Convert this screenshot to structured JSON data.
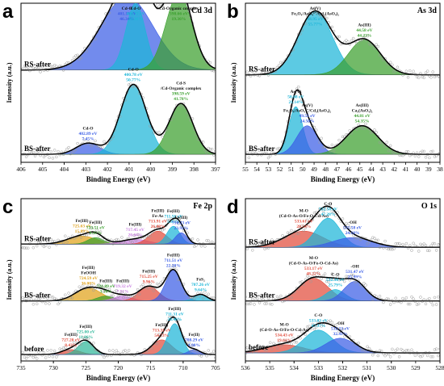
{
  "chart_data": [
    {
      "panel": "a",
      "title": "Cd 3d",
      "type": "line",
      "x_range": [
        406,
        397
      ],
      "x_ticks": [
        406,
        405,
        404,
        403,
        402,
        401,
        400,
        399,
        398,
        397
      ],
      "xlabel": "Binding Energy (eV)",
      "ylabel": "Intensity (a.u.)",
      "stacks": [
        {
          "name": "RS-after",
          "baseline_frac": 0.58,
          "peaks": [
            {
              "center": 401.1,
              "height": 0.46,
              "width": 1.2,
              "color": "#3b5ee6",
              "labels": [
                "Cd-O",
                "401.19 eV",
                "46.34%"
              ]
            },
            {
              "center": 400.7,
              "height": 0.42,
              "width": 0.45,
              "color": "#1db6d8",
              "labels": [
                "Cd-O",
                "400.72 eV",
                "34.26%"
              ]
            },
            {
              "center": 398.7,
              "height": 0.48,
              "width": 0.6,
              "color": "#3ba02e",
              "labels": [
                "Cd-Organic complex",
                "398.66 eV",
                "19.36%"
              ]
            }
          ]
        },
        {
          "name": "BS-after",
          "baseline_frac": 0.05,
          "peaks": [
            {
              "center": 402.9,
              "height": 0.07,
              "width": 0.55,
              "color": "#3b5ee6",
              "labels": [
                "Cd-O",
                "402.89 eV",
                "7.45%"
              ]
            },
            {
              "center": 400.8,
              "height": 0.44,
              "width": 0.6,
              "color": "#1db6d8",
              "labels": [
                "Cd-O",
                "400.78 eV",
                "50.77%"
              ]
            },
            {
              "center": 398.6,
              "height": 0.32,
              "width": 0.55,
              "color": "#3ba02e",
              "labels": [
                "Cd-S",
                "/Cd-Organic complex",
                "398.59 eV",
                "41.78%"
              ]
            }
          ]
        }
      ]
    },
    {
      "panel": "b",
      "title": "As 3d",
      "type": "line",
      "x_range": [
        55,
        38
      ],
      "x_ticks": [
        55,
        54,
        53,
        52,
        51,
        50,
        49,
        48,
        47,
        46,
        45,
        44,
        43,
        42,
        41,
        40,
        39,
        38
      ],
      "xlabel": "Binding Energy (eV)",
      "ylabel": "Intensity (a.u.)",
      "stacks": [
        {
          "name": "RS-after",
          "baseline_frac": 0.55,
          "peaks": [
            {
              "center": 48.9,
              "height": 0.4,
              "width": 1.5,
              "color": "#1db6d8",
              "labels": [
                "As(V)",
                "Fe₃O₄/AsO₄³⁻/Cd₃(AsO₄)₂",
                "48.95 eV",
                "55.77%"
              ]
            },
            {
              "center": 44.6,
              "height": 0.22,
              "width": 1.4,
              "color": "#3ba02e",
              "labels": [
                "As(III)",
                "44.58 eV",
                "44.23%"
              ]
            }
          ]
        },
        {
          "name": "BS-after",
          "baseline_frac": 0.05,
          "peaks": [
            {
              "center": 50.6,
              "height": 0.3,
              "width": 0.6,
              "color": "#1db6d8",
              "labels": [
                "As(V)",
                "50.68 eV",
                "21.14%"
              ]
            },
            {
              "center": 49.6,
              "height": 0.18,
              "width": 0.9,
              "color": "#3b5ee6",
              "labels": [
                "As(V)",
                "Fe₃O₄/AsO₄³⁻/Cd₃(AsO₄)₂",
                "49.55 eV",
                "24.50%"
              ]
            },
            {
              "center": 44.8,
              "height": 0.18,
              "width": 1.4,
              "color": "#3ba02e",
              "labels": [
                "As(III)",
                "Ca₃(AsO₄)₂",
                "44.81 eV",
                "54.35%"
              ]
            }
          ]
        }
      ]
    },
    {
      "panel": "c",
      "title": "Fe 2p",
      "type": "line",
      "x_range": [
        735,
        705
      ],
      "x_ticks": [
        735,
        730,
        725,
        720,
        715,
        710,
        705
      ],
      "xlabel": "Binding Energy (eV)",
      "ylabel": "Intensity (a.u.)",
      "stacks": [
        {
          "name": "RS-after",
          "baseline_frac": 0.72,
          "peaks": [
            {
              "center": 725.6,
              "height": 0.05,
              "width": 2.2,
              "color": "#e0a21a",
              "labels": [
                "Fe(III)",
                "725.63 eV",
                "15.89%"
              ]
            },
            {
              "center": 723.5,
              "height": 0.04,
              "width": 1.2,
              "color": "#3ba02e",
              "labels": [
                "Fe(III)",
                "723.51 eV",
                "8.41%"
              ]
            },
            {
              "center": 717.4,
              "height": 0.03,
              "width": 2.0,
              "color": "#c77be0",
              "labels": [
                "Fe(III)",
                "717.45 eV",
                "20.04%"
              ]
            },
            {
              "center": 713.9,
              "height": 0.08,
              "width": 1.4,
              "color": "#e24c3c",
              "labels": [
                "Fe(III)",
                "Fe-As",
                "713.91 eV",
                "26.48%"
              ]
            },
            {
              "center": 711.5,
              "height": 0.11,
              "width": 1.0,
              "color": "#1db6d8",
              "labels": [
                "Fe(III)",
                "711.56 eV",
                "5.85%"
              ]
            },
            {
              "center": 710.3,
              "height": 0.07,
              "width": 0.9,
              "color": "#3b5ee6",
              "labels": [
                "Fe(III)",
                "710.23 eV",
                "23.92%"
              ]
            }
          ]
        },
        {
          "name": "BS-after",
          "baseline_frac": 0.37,
          "peaks": [
            {
              "center": 724.6,
              "height": 0.08,
              "width": 2.0,
              "color": "#e0a21a",
              "labels": [
                "Fe(III)",
                "FeOOH",
                "724.59 eV",
                "36.00%"
              ]
            },
            {
              "center": 721.9,
              "height": 0.03,
              "width": 1.3,
              "color": "#3ba02e",
              "labels": [
                "Fe(III)",
                "721.89 eV",
                "3.10%"
              ]
            },
            {
              "center": 719.3,
              "height": 0.03,
              "width": 1.4,
              "color": "#c77be0",
              "labels": [
                "Fe(III)",
                "719.32 eV",
                "7.51%"
              ]
            },
            {
              "center": 715.3,
              "height": 0.09,
              "width": 1.5,
              "color": "#e24c3c",
              "labels": [
                "Fe(III)",
                "715.25 eV",
                "9.96%"
              ]
            },
            {
              "center": 711.5,
              "height": 0.19,
              "width": 1.2,
              "color": "#3b5ee6",
              "labels": [
                "Fe(III)",
                "711.51 eV",
                "22.20%"
              ]
            },
            {
              "center": 707.3,
              "height": 0.04,
              "width": 1.0,
              "color": "#1db6d8",
              "labels": [
                "FeS₂",
                "707.26 eV",
                "9.64%"
              ]
            }
          ]
        },
        {
          "name": "before",
          "baseline_frac": 0.04,
          "peaks": [
            {
              "center": 727.3,
              "height": 0.03,
              "width": 1.4,
              "color": "#e24c3c",
              "labels": [
                "Fe(III)",
                "727.20 eV",
                "8.43%"
              ]
            },
            {
              "center": 725.0,
              "height": 0.08,
              "width": 1.2,
              "color": "#2fb89a",
              "labels": [
                "Fe(III)",
                "725.00 eV",
                "11.86%"
              ]
            },
            {
              "center": 713.3,
              "height": 0.09,
              "width": 1.5,
              "color": "#e24c3c",
              "labels": [
                "Fe(III)",
                "713.31 eV",
                "54.73%"
              ]
            },
            {
              "center": 711.3,
              "height": 0.19,
              "width": 1.1,
              "color": "#1db6d8",
              "labels": [
                "Fe(III)",
                "711.31 eV",
                "28.46%"
              ]
            },
            {
              "center": 708.3,
              "height": 0.03,
              "width": 0.9,
              "color": "#3b5ee6",
              "labels": [
                "Fe(II)",
                "708.29 eV",
                "4.90%"
              ]
            }
          ]
        }
      ]
    },
    {
      "panel": "d",
      "title": "O 1s",
      "type": "line",
      "x_range": [
        536,
        528
      ],
      "x_ticks": [
        536,
        535,
        534,
        533,
        532,
        531,
        530,
        529,
        528
      ],
      "xlabel": "Binding Energy (eV)",
      "ylabel": "Intensity (a.u.)",
      "stacks": [
        {
          "name": "RS-after",
          "baseline_frac": 0.7,
          "peaks": [
            {
              "center": 533.6,
              "height": 0.1,
              "width": 0.8,
              "color": "#e24c3c",
              "labels": [
                "M-O",
                "(Cd-O-As-O/Fe-O-Cd-As)",
                "533.61 eV",
                "28.54%"
              ]
            },
            {
              "center": 532.6,
              "height": 0.18,
              "width": 0.5,
              "color": "#1db6d8",
              "labels": [
                "C-O",
                "532.58 eV",
                "47.28%"
              ]
            },
            {
              "center": 531.6,
              "height": 0.06,
              "width": 0.8,
              "color": "#3b5ee6",
              "labels": [
                "-OH",
                "531.58 eV",
                "24.18%"
              ]
            }
          ]
        },
        {
          "name": "BS-after",
          "baseline_frac": 0.37,
          "peaks": [
            {
              "center": 533.2,
              "height": 0.14,
              "width": 0.6,
              "color": "#e24c3c",
              "labels": [
                "M-O",
                "(Cd-O-As-O/Fe-O-Cd-As)",
                "533.17 eV",
                "48.22%"
              ]
            },
            {
              "center": 532.3,
              "height": 0.07,
              "width": 0.4,
              "color": "#1db6d8",
              "labels": [
                "C-O",
                "532.30 eV",
                "25.79%"
              ]
            },
            {
              "center": 531.5,
              "height": 0.12,
              "width": 0.45,
              "color": "#3b5ee6",
              "labels": [
                "-OH",
                "531.47 eV",
                "25.99%"
              ]
            }
          ]
        },
        {
          "name": "before",
          "baseline_frac": 0.05,
          "peaks": [
            {
              "center": 534.4,
              "height": 0.05,
              "width": 0.8,
              "color": "#e24c3c",
              "labels": [
                "M-O",
                "(Cd-O-As-O/Fe-O-Cd-As)",
                "534.43 eV",
                "19.61%"
              ]
            },
            {
              "center": 533.0,
              "height": 0.14,
              "width": 0.6,
              "color": "#1db6d8",
              "labels": [
                "C-O",
                "533.03 eV",
                "47.97%"
              ]
            },
            {
              "center": 532.1,
              "height": 0.09,
              "width": 0.6,
              "color": "#3b5ee6",
              "labels": [
                "-OH",
                "532.13 eV",
                "32.41%"
              ]
            }
          ]
        }
      ]
    }
  ]
}
